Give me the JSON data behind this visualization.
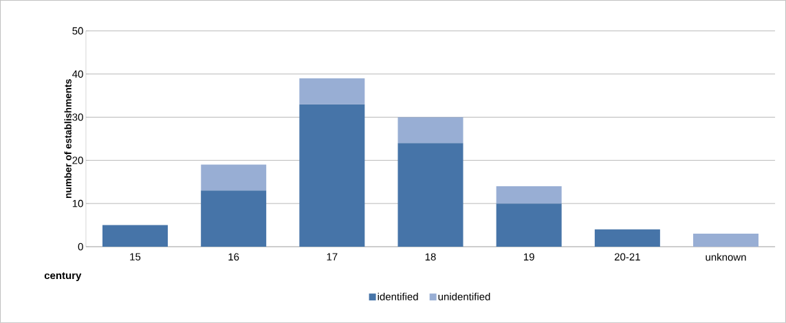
{
  "chart_data": {
    "type": "bar",
    "stacked": true,
    "xlabel": "century",
    "ylabel": "number of establishments",
    "categories": [
      "15",
      "16",
      "17",
      "18",
      "19",
      "20-21",
      "unknown"
    ],
    "series": [
      {
        "name": "identified",
        "color": "#4674a8",
        "values": [
          5,
          13,
          33,
          24,
          10,
          4,
          0
        ]
      },
      {
        "name": "unidentified",
        "color": "#98aed4",
        "values": [
          0,
          6,
          6,
          6,
          4,
          0,
          3
        ]
      }
    ],
    "ylim": [
      0,
      50
    ],
    "yticks": [
      0,
      10,
      20,
      30,
      40,
      50
    ],
    "grid": "y",
    "legend": "bottom"
  }
}
